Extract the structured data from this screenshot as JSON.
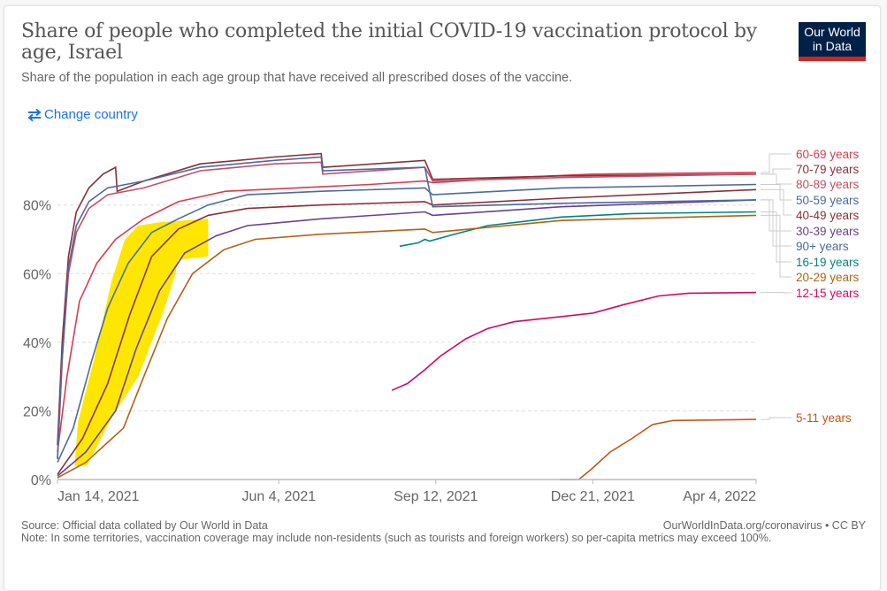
{
  "header": {
    "title": "Share of people who completed the initial COVID-19 vaccination protocol by age, Israel",
    "title_line1": "Share of people who completed the initial COVID-19 vaccination protocol by",
    "title_line2": "age, Israel",
    "subtitle": "Share of the population in each age group that have received all prescribed doses of the vaccine.",
    "logo_line1": "Our World",
    "logo_line2": "in Data",
    "change_country_label": "Change country",
    "change_country_icon": "swap-arrows-icon"
  },
  "footer": {
    "source": "Source: Official data collated by Our World in Data",
    "note": "Note: In some territories, vaccination coverage may include non-residents (such as tourists and foreign workers) so per-capita metrics may exceed 100%.",
    "attribution": "OurWorldInData.org/coronavirus • CC BY"
  },
  "highlight_color": "#FFE600",
  "chart_data": {
    "type": "line",
    "title": "Share of people who completed the initial COVID-19 vaccination protocol by age, Israel",
    "subtitle": "Share of the population in each age group that have received all prescribed doses of the vaccine.",
    "xlabel": "",
    "ylabel": "",
    "x_type": "date",
    "x_range": [
      "2021-01-14",
      "2022-04-04"
    ],
    "x_ticks": [
      {
        "date": "2021-01-14",
        "label": "Jan 14, 2021"
      },
      {
        "date": "2021-06-04",
        "label": "Jun 4, 2021"
      },
      {
        "date": "2021-09-12",
        "label": "Sep 12, 2021"
      },
      {
        "date": "2021-12-21",
        "label": "Dec 21, 2021"
      },
      {
        "date": "2022-04-04",
        "label": "Apr 4, 2022"
      }
    ],
    "ylim": [
      0,
      100
    ],
    "y_ticks": [
      {
        "value": 0,
        "label": "0%"
      },
      {
        "value": 20,
        "label": "20%"
      },
      {
        "value": 40,
        "label": "40%"
      },
      {
        "value": 60,
        "label": "60%"
      },
      {
        "value": 80,
        "label": "80%"
      }
    ],
    "grid": "horizontal-dashed",
    "legend": "right-inline-labels",
    "series": [
      {
        "name": "60-69 years",
        "color": "#D73C50",
        "points": [
          [
            "2021-01-14",
            8
          ],
          [
            "2021-01-20",
            30
          ],
          [
            "2021-01-28",
            52
          ],
          [
            "2021-02-08",
            63
          ],
          [
            "2021-02-20",
            70
          ],
          [
            "2021-03-10",
            76
          ],
          [
            "2021-04-01",
            81
          ],
          [
            "2021-05-01",
            84
          ],
          [
            "2021-06-15",
            85
          ],
          [
            "2021-08-01",
            86
          ],
          [
            "2021-09-05",
            87
          ],
          [
            "2021-09-10",
            86.5
          ],
          [
            "2021-11-01",
            88
          ],
          [
            "2021-12-21",
            89
          ],
          [
            "2022-04-04",
            89.5
          ]
        ]
      },
      {
        "name": "70-79 years",
        "color": "#883039",
        "points": [
          [
            "2021-01-14",
            10
          ],
          [
            "2021-01-17",
            40
          ],
          [
            "2021-01-21",
            65
          ],
          [
            "2021-01-26",
            78
          ],
          [
            "2021-02-03",
            85
          ],
          [
            "2021-02-12",
            89
          ],
          [
            "2021-02-20",
            91
          ],
          [
            "2021-02-21",
            84
          ],
          [
            "2021-03-10",
            87
          ],
          [
            "2021-04-15",
            92
          ],
          [
            "2021-06-01",
            94
          ],
          [
            "2021-07-01",
            95
          ],
          [
            "2021-07-02",
            91
          ],
          [
            "2021-09-05",
            93
          ],
          [
            "2021-09-10",
            87.5
          ],
          [
            "2021-12-01",
            88.5
          ],
          [
            "2022-04-04",
            89
          ]
        ]
      },
      {
        "name": "80-89 years",
        "color": "#C15065",
        "points": [
          [
            "2021-01-14",
            6
          ],
          [
            "2021-01-17",
            35
          ],
          [
            "2021-01-21",
            60
          ],
          [
            "2021-01-26",
            72
          ],
          [
            "2021-02-03",
            79
          ],
          [
            "2021-02-15",
            83
          ],
          [
            "2021-03-10",
            85
          ],
          [
            "2021-04-15",
            90
          ],
          [
            "2021-06-01",
            92
          ],
          [
            "2021-07-01",
            92.5
          ],
          [
            "2021-07-02",
            89
          ],
          [
            "2021-09-05",
            91
          ],
          [
            "2021-09-10",
            87
          ],
          [
            "2021-12-01",
            88
          ],
          [
            "2022-04-04",
            89
          ]
        ]
      },
      {
        "name": "50-59 years",
        "color": "#4C6A9C",
        "points": [
          [
            "2021-01-14",
            5
          ],
          [
            "2021-01-24",
            15
          ],
          [
            "2021-02-05",
            35
          ],
          [
            "2021-02-15",
            50
          ],
          [
            "2021-02-28",
            63
          ],
          [
            "2021-03-15",
            72
          ],
          [
            "2021-04-01",
            76
          ],
          [
            "2021-04-20",
            80
          ],
          [
            "2021-05-15",
            83
          ],
          [
            "2021-07-01",
            84
          ],
          [
            "2021-09-05",
            85
          ],
          [
            "2021-09-10",
            83
          ],
          [
            "2021-12-01",
            85
          ],
          [
            "2022-04-04",
            86
          ]
        ]
      },
      {
        "name": "40-49 years",
        "color": "#883039",
        "points": [
          [
            "2021-01-14",
            1.5
          ],
          [
            "2021-01-30",
            12
          ],
          [
            "2021-02-15",
            28
          ],
          [
            "2021-03-01",
            48
          ],
          [
            "2021-03-15",
            65
          ],
          [
            "2021-04-01",
            73
          ],
          [
            "2021-04-20",
            77
          ],
          [
            "2021-05-15",
            79
          ],
          [
            "2021-07-01",
            80
          ],
          [
            "2021-09-05",
            81
          ],
          [
            "2021-09-10",
            80
          ],
          [
            "2021-12-01",
            82
          ],
          [
            "2022-04-04",
            84.5
          ]
        ]
      },
      {
        "name": "30-39 years",
        "color": "#6D3E91",
        "points": [
          [
            "2021-01-14",
            1
          ],
          [
            "2021-02-01",
            8
          ],
          [
            "2021-02-20",
            20
          ],
          [
            "2021-03-05",
            38
          ],
          [
            "2021-03-20",
            55
          ],
          [
            "2021-04-05",
            66
          ],
          [
            "2021-04-25",
            71
          ],
          [
            "2021-05-15",
            74
          ],
          [
            "2021-07-01",
            76
          ],
          [
            "2021-09-05",
            78
          ],
          [
            "2021-09-10",
            77
          ],
          [
            "2021-12-01",
            79.5
          ],
          [
            "2022-04-04",
            81.5
          ]
        ]
      },
      {
        "name": "90+ years",
        "color": "#4C6A9C",
        "points": [
          [
            "2021-01-14",
            6
          ],
          [
            "2021-01-17",
            35
          ],
          [
            "2021-01-21",
            62
          ],
          [
            "2021-01-26",
            74
          ],
          [
            "2021-02-03",
            81
          ],
          [
            "2021-02-15",
            85
          ],
          [
            "2021-03-10",
            87
          ],
          [
            "2021-04-15",
            91
          ],
          [
            "2021-06-01",
            93
          ],
          [
            "2021-07-01",
            94
          ],
          [
            "2021-07-02",
            90
          ],
          [
            "2021-09-05",
            91
          ],
          [
            "2021-09-10",
            79.5
          ],
          [
            "2021-12-01",
            80.5
          ],
          [
            "2022-04-04",
            81.5
          ]
        ]
      },
      {
        "name": "16-19 years",
        "color": "#00847E",
        "points": [
          [
            "2021-08-20",
            68
          ],
          [
            "2021-09-01",
            69
          ],
          [
            "2021-09-05",
            70
          ],
          [
            "2021-09-08",
            69.5
          ],
          [
            "2021-09-20",
            71
          ],
          [
            "2021-10-15",
            74
          ],
          [
            "2021-12-01",
            76.5
          ],
          [
            "2022-01-15",
            77.5
          ],
          [
            "2022-04-04",
            78
          ]
        ]
      },
      {
        "name": "20-29 years",
        "color": "#B16214",
        "points": [
          [
            "2021-01-14",
            0.5
          ],
          [
            "2021-02-01",
            5
          ],
          [
            "2021-02-25",
            15
          ],
          [
            "2021-03-10",
            30
          ],
          [
            "2021-03-25",
            47
          ],
          [
            "2021-04-10",
            60
          ],
          [
            "2021-04-30",
            67
          ],
          [
            "2021-05-20",
            70
          ],
          [
            "2021-07-01",
            71.5
          ],
          [
            "2021-09-05",
            73
          ],
          [
            "2021-09-10",
            72
          ],
          [
            "2021-12-01",
            75.5
          ],
          [
            "2022-04-04",
            77
          ]
        ]
      },
      {
        "name": "12-15 years",
        "color": "#CF0A66",
        "points": [
          [
            "2021-08-15",
            26
          ],
          [
            "2021-08-25",
            28
          ],
          [
            "2021-09-05",
            32
          ],
          [
            "2021-09-15",
            36
          ],
          [
            "2021-10-01",
            41
          ],
          [
            "2021-10-15",
            44
          ],
          [
            "2021-11-01",
            46
          ],
          [
            "2021-12-01",
            47.5
          ],
          [
            "2021-12-21",
            48.5
          ],
          [
            "2022-01-10",
            51
          ],
          [
            "2022-02-01",
            53.5
          ],
          [
            "2022-02-20",
            54.3
          ],
          [
            "2022-04-04",
            54.5
          ]
        ]
      },
      {
        "name": "5-11 years",
        "color": "#BE5915",
        "points": [
          [
            "2021-11-30",
            0
          ],
          [
            "2021-12-12",
            0
          ],
          [
            "2021-12-20",
            3
          ],
          [
            "2022-01-01",
            8
          ],
          [
            "2022-01-15",
            12
          ],
          [
            "2022-01-28",
            16
          ],
          [
            "2022-02-10",
            17.2
          ],
          [
            "2022-04-04",
            17.5
          ]
        ]
      }
    ],
    "highlight_region": {
      "description": "yellow hand-drawn highlight over early 2021 rollout of younger age groups",
      "x_range": [
        "2021-01-26",
        "2021-04-20"
      ],
      "y_range": [
        4,
        76
      ]
    }
  }
}
